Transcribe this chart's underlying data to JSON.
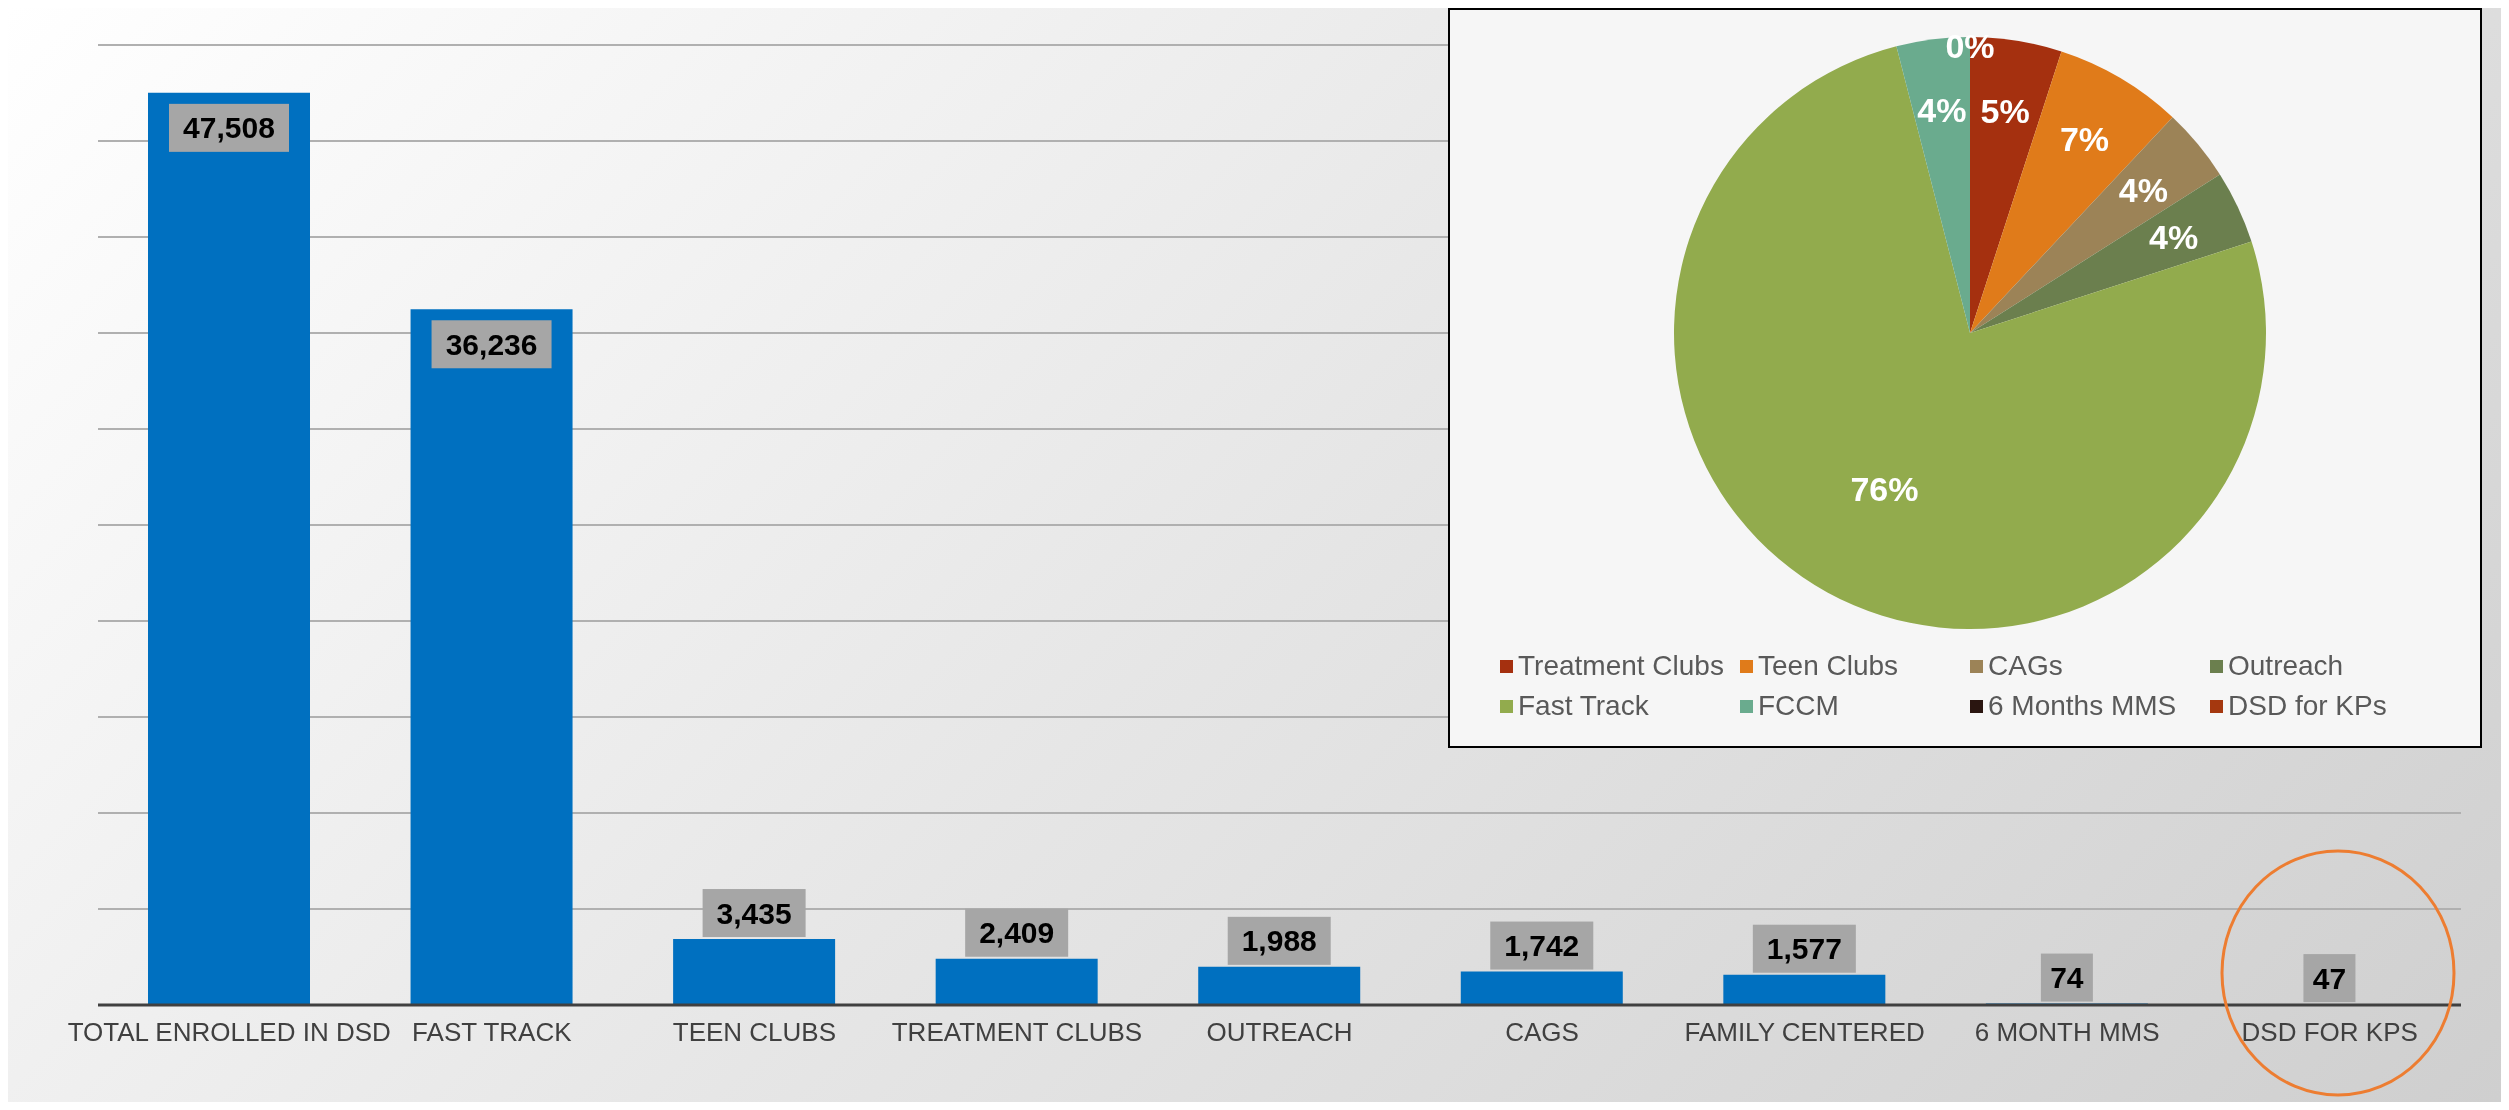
{
  "chart_data": [
    {
      "type": "bar",
      "categories": [
        "TOTAL ENROLLED IN DSD",
        "FAST TRACK",
        "TEEN CLUBS",
        "TREATMENT CLUBS",
        "OUTREACH",
        "CAGS",
        "FAMILY CENTERED",
        "6 MONTH MMS",
        "DSD FOR KPS"
      ],
      "values": [
        47508,
        36236,
        3435,
        2409,
        1988,
        1742,
        1577,
        74,
        47
      ],
      "color": "#0070c0",
      "value_labels": [
        "47,508",
        "36,236",
        "3,435",
        "2,409",
        "1,988",
        "1,742",
        "1,577",
        "74",
        "47"
      ],
      "grid": "y",
      "tick_labels": "x"
    },
    {
      "type": "pie",
      "categories": [
        "Treatment Clubs",
        "Teen Clubs",
        "CAGs",
        "Outreach",
        "Fast Track",
        "FCCM",
        "6 Months MMS",
        "DSD for KPs"
      ],
      "values": [
        5,
        7,
        4,
        4,
        76,
        4,
        0,
        0
      ],
      "colors": [
        "#a5300f",
        "#e07b1a",
        "#9c8357",
        "#6b7f4e",
        "#92ab4d",
        "#6aab8e",
        "#2a1510",
        "#a5380f"
      ],
      "value_labels": [
        "5%",
        "7%",
        "4%",
        "4%",
        "76%",
        "4%",
        "0%",
        null
      ],
      "legend": "bottom"
    }
  ]
}
